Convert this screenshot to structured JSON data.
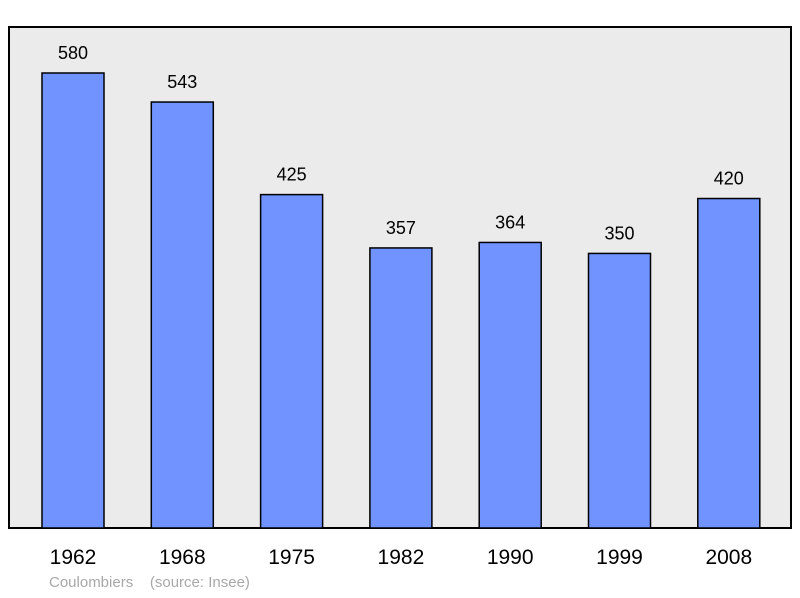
{
  "chart_data": {
    "type": "bar",
    "categories": [
      "1962",
      "1968",
      "1975",
      "1982",
      "1990",
      "1999",
      "2008"
    ],
    "values": [
      580,
      543,
      425,
      357,
      364,
      350,
      420
    ],
    "ylim": [
      0,
      580
    ],
    "grid": false,
    "bar_color": "#7093ff",
    "background_color": "#ebebeb"
  },
  "caption": {
    "place": "Coulombiers",
    "source": "(source: Insee)"
  }
}
